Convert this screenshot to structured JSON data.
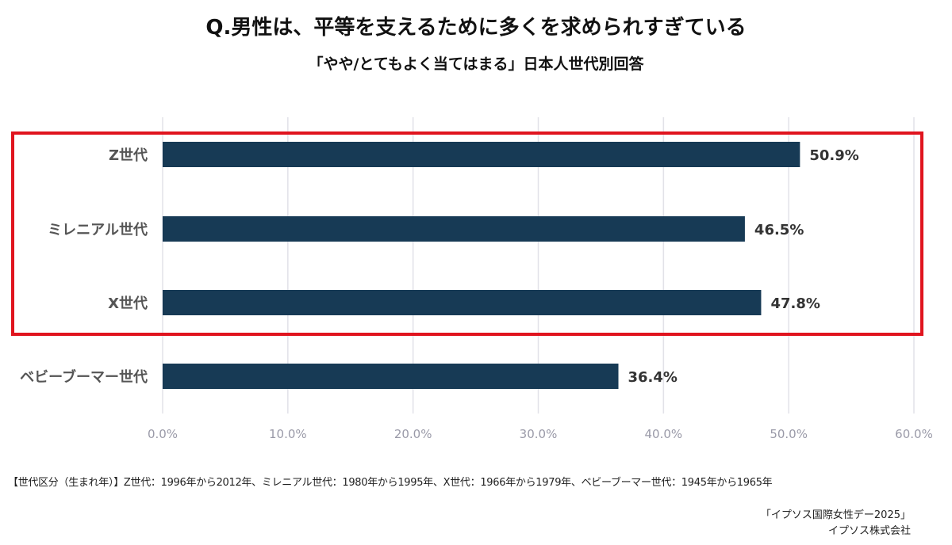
{
  "colors": {
    "bar": "#173a55",
    "highlight_box": "#e0141e",
    "grid": "#e2e2e8",
    "tick_label": "#9a9aa8",
    "category_label": "#555555",
    "value_label": "#333333"
  },
  "chart_data": {
    "type": "bar",
    "orientation": "horizontal",
    "title": "Q.男性は、平等を支えるために多くを求められすぎている",
    "subtitle": "「やや/とてもよく当てはまる」日本人世代別回答",
    "categories": [
      "Z世代",
      "ミレニアル世代",
      "X世代",
      "ベビーブーマー世代"
    ],
    "values": [
      50.9,
      46.5,
      47.8,
      36.4
    ],
    "value_labels": [
      "50.9%",
      "46.5%",
      "47.8%",
      "36.4%"
    ],
    "xlim": [
      0,
      60
    ],
    "x_ticks": [
      "0.0%",
      "10.0%",
      "20.0%",
      "30.0%",
      "40.0%",
      "50.0%",
      "60.0%"
    ],
    "grid": true,
    "highlighted_categories": [
      "Z世代",
      "ミレニアル世代",
      "X世代"
    ]
  },
  "footnote": "【世代区分（生まれ年）】Z世代：1996年から2012年、ミレニアル世代：1980年から1995年、X世代：1966年から1979年、ベビーブーマー世代：1945年から1965年",
  "source": {
    "line1": "「イプソス国際女性デー2025」",
    "line2": "イプソス株式会社"
  }
}
